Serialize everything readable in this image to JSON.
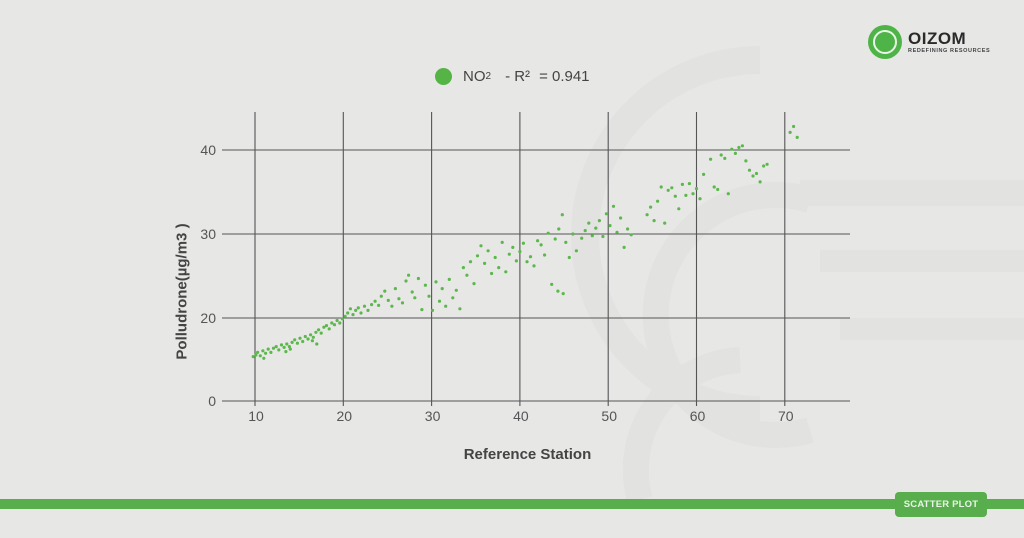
{
  "brand": {
    "name": "OIZOM",
    "tagline": "REDEFINING RESOURCES",
    "color": "#4fb447"
  },
  "legend": {
    "series_name": "NO",
    "subscript": "2",
    "stat_label": "- R²",
    "stat_value": "= 0.941",
    "color": "#56b446"
  },
  "badge": {
    "label": "SCATTER PLOT"
  },
  "chart_data": {
    "type": "scatter",
    "title": "",
    "xlabel": "Reference Station",
    "ylabel": "Polludrone(µg/m3 )",
    "x_ticks": [
      10,
      20,
      30,
      40,
      50,
      60,
      70
    ],
    "y_ticks": [
      0,
      20,
      30,
      40
    ],
    "xlim": [
      9,
      76
    ],
    "ylim": [
      10,
      45
    ],
    "grid": true,
    "legend_position": "top-center",
    "series": [
      {
        "name": "NO2",
        "r_squared": 0.941,
        "color": "#5cb84c",
        "points": [
          [
            9.8,
            15.4
          ],
          [
            10.1,
            15.6
          ],
          [
            10.3,
            15.9
          ],
          [
            10.6,
            15.5
          ],
          [
            10.9,
            16.1
          ],
          [
            11.2,
            15.8
          ],
          [
            11.5,
            16.3
          ],
          [
            11.8,
            15.9
          ],
          [
            12.1,
            16.4
          ],
          [
            12.4,
            16.6
          ],
          [
            12.7,
            16.2
          ],
          [
            13.0,
            16.8
          ],
          [
            13.3,
            16.5
          ],
          [
            13.6,
            16.9
          ],
          [
            13.9,
            16.6
          ],
          [
            14.2,
            17.1
          ],
          [
            14.5,
            17.4
          ],
          [
            14.8,
            17.0
          ],
          [
            15.1,
            17.6
          ],
          [
            15.4,
            17.2
          ],
          [
            15.7,
            17.8
          ],
          [
            16.0,
            17.5
          ],
          [
            16.3,
            18.0
          ],
          [
            16.6,
            17.7
          ],
          [
            16.9,
            18.3
          ],
          [
            17.2,
            18.6
          ],
          [
            17.5,
            18.2
          ],
          [
            17.8,
            18.9
          ],
          [
            18.1,
            19.1
          ],
          [
            18.4,
            18.7
          ],
          [
            18.7,
            19.4
          ],
          [
            19.0,
            19.2
          ],
          [
            19.3,
            19.7
          ],
          [
            19.6,
            19.4
          ],
          [
            19.9,
            19.9
          ],
          [
            20.2,
            20.2
          ],
          [
            20.5,
            20.6
          ],
          [
            20.8,
            21.1
          ],
          [
            21.1,
            20.4
          ],
          [
            21.4,
            20.9
          ],
          [
            21.7,
            21.2
          ],
          [
            22.0,
            20.6
          ],
          [
            22.4,
            21.4
          ],
          [
            22.8,
            20.9
          ],
          [
            23.2,
            21.6
          ],
          [
            17.0,
            16.9
          ],
          [
            16.5,
            17.3
          ],
          [
            13.5,
            16.0
          ],
          [
            11.0,
            15.2
          ],
          [
            14.0,
            16.3
          ],
          [
            23.6,
            22.0
          ],
          [
            24.0,
            21.5
          ],
          [
            24.3,
            22.6
          ],
          [
            24.7,
            23.2
          ],
          [
            25.1,
            22.1
          ],
          [
            25.5,
            21.4
          ],
          [
            25.9,
            23.5
          ],
          [
            26.3,
            22.3
          ],
          [
            26.7,
            21.8
          ],
          [
            27.1,
            24.4
          ],
          [
            27.4,
            25.1
          ],
          [
            27.8,
            23.1
          ],
          [
            28.1,
            22.4
          ],
          [
            28.5,
            24.7
          ],
          [
            28.9,
            21.0
          ],
          [
            29.3,
            23.9
          ],
          [
            29.7,
            22.6
          ],
          [
            30.1,
            20.9
          ],
          [
            30.5,
            24.3
          ],
          [
            30.9,
            22.0
          ],
          [
            31.2,
            23.5
          ],
          [
            31.6,
            21.4
          ],
          [
            32.0,
            24.6
          ],
          [
            32.4,
            22.4
          ],
          [
            32.8,
            23.3
          ],
          [
            33.2,
            21.1
          ],
          [
            33.6,
            26.0
          ],
          [
            34.0,
            25.1
          ],
          [
            34.4,
            26.7
          ],
          [
            34.8,
            24.1
          ],
          [
            35.2,
            27.4
          ],
          [
            35.6,
            28.6
          ],
          [
            36.0,
            26.5
          ],
          [
            36.4,
            28.0
          ],
          [
            36.8,
            25.3
          ],
          [
            37.2,
            27.2
          ],
          [
            37.6,
            26.0
          ],
          [
            38.0,
            29.0
          ],
          [
            38.4,
            25.5
          ],
          [
            38.8,
            27.6
          ],
          [
            39.2,
            28.4
          ],
          [
            39.6,
            26.8
          ],
          [
            40.0,
            27.9
          ],
          [
            40.4,
            28.9
          ],
          [
            40.8,
            26.7
          ],
          [
            41.2,
            27.3
          ],
          [
            41.6,
            26.2
          ],
          [
            42.0,
            29.2
          ],
          [
            42.4,
            28.7
          ],
          [
            42.8,
            27.5
          ],
          [
            43.2,
            30.1
          ],
          [
            43.6,
            24.0
          ],
          [
            44.0,
            29.4
          ],
          [
            44.4,
            30.6
          ],
          [
            44.8,
            32.3
          ],
          [
            45.2,
            29.0
          ],
          [
            45.6,
            27.2
          ],
          [
            46.0,
            30.0
          ],
          [
            46.4,
            28.0
          ],
          [
            44.3,
            23.2
          ],
          [
            44.9,
            22.9
          ],
          [
            47.0,
            29.5
          ],
          [
            47.4,
            30.4
          ],
          [
            47.8,
            31.3
          ],
          [
            48.2,
            29.8
          ],
          [
            48.6,
            30.7
          ],
          [
            49.0,
            31.6
          ],
          [
            49.4,
            29.7
          ],
          [
            49.8,
            32.4
          ],
          [
            50.2,
            31.0
          ],
          [
            50.6,
            33.3
          ],
          [
            51.0,
            30.2
          ],
          [
            51.4,
            31.9
          ],
          [
            51.8,
            28.4
          ],
          [
            52.2,
            30.6
          ],
          [
            52.6,
            29.9
          ],
          [
            54.4,
            32.3
          ],
          [
            54.8,
            33.2
          ],
          [
            55.2,
            31.6
          ],
          [
            55.6,
            33.9
          ],
          [
            56.0,
            35.6
          ],
          [
            56.4,
            31.3
          ],
          [
            56.8,
            35.2
          ],
          [
            57.2,
            35.5
          ],
          [
            57.6,
            34.5
          ],
          [
            58.0,
            33.0
          ],
          [
            58.4,
            35.9
          ],
          [
            58.8,
            34.6
          ],
          [
            59.2,
            36.0
          ],
          [
            59.6,
            34.8
          ],
          [
            60.0,
            35.4
          ],
          [
            60.4,
            34.2
          ],
          [
            60.8,
            37.1
          ],
          [
            61.6,
            38.9
          ],
          [
            62.0,
            35.6
          ],
          [
            62.4,
            35.3
          ],
          [
            62.8,
            39.4
          ],
          [
            63.2,
            39.0
          ],
          [
            63.6,
            34.8
          ],
          [
            64.0,
            40.1
          ],
          [
            64.4,
            39.6
          ],
          [
            64.8,
            40.3
          ],
          [
            65.2,
            40.5
          ],
          [
            65.6,
            38.7
          ],
          [
            66.0,
            37.6
          ],
          [
            66.4,
            36.9
          ],
          [
            66.8,
            37.2
          ],
          [
            67.2,
            36.2
          ],
          [
            67.6,
            38.1
          ],
          [
            68.0,
            38.3
          ],
          [
            70.6,
            42.1
          ],
          [
            71.0,
            42.8
          ],
          [
            71.4,
            41.5
          ]
        ]
      }
    ]
  }
}
